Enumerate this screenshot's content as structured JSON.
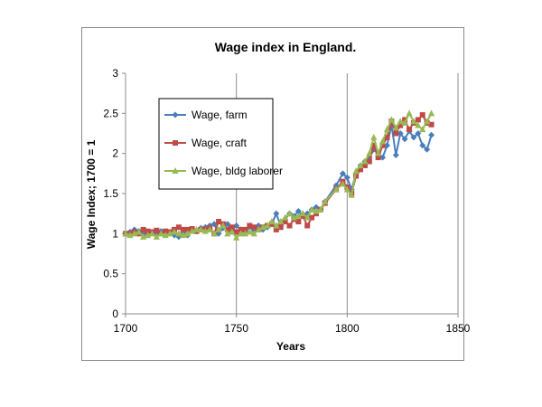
{
  "chart_data": {
    "type": "line",
    "title": "Wage index in England.",
    "xlabel": "Years",
    "ylabel": "Wage Index; 1700 = 1",
    "xlim": [
      1700,
      1850
    ],
    "ylim": [
      0,
      3
    ],
    "xticks": [
      1700,
      1750,
      1800,
      1850
    ],
    "yticks": [
      0,
      0.5,
      1,
      1.5,
      2,
      2.5,
      3
    ],
    "xtick_labels": [
      "1700",
      "1750",
      "1800",
      "1850"
    ],
    "ytick_labels": [
      "0",
      "0.5",
      "1",
      "1.5",
      "2",
      "2.5",
      "3"
    ],
    "grid": "vertical",
    "legend_position": "upper-left",
    "series": [
      {
        "name": "Wage, farm",
        "color": "#4a7ebb",
        "marker": "diamond",
        "x": [
          1700,
          1702,
          1704,
          1706,
          1708,
          1710,
          1712,
          1714,
          1716,
          1718,
          1720,
          1722,
          1724,
          1726,
          1728,
          1730,
          1732,
          1734,
          1736,
          1738,
          1740,
          1742,
          1744,
          1746,
          1748,
          1750,
          1752,
          1754,
          1756,
          1758,
          1760,
          1762,
          1764,
          1766,
          1768,
          1770,
          1772,
          1774,
          1776,
          1778,
          1780,
          1782,
          1784,
          1786,
          1788,
          1790,
          1795,
          1798,
          1800,
          1802,
          1804,
          1806,
          1808,
          1810,
          1812,
          1814,
          1816,
          1818,
          1820,
          1822,
          1824,
          1826,
          1828,
          1830,
          1832,
          1834,
          1836,
          1838
        ],
        "y": [
          1.0,
          1.02,
          1.05,
          1.03,
          1.0,
          0.98,
          1.02,
          1.0,
          1.03,
          1.0,
          1.02,
          0.98,
          0.96,
          1.02,
          0.98,
          1.05,
          1.03,
          1.07,
          1.08,
          1.1,
          1.12,
          1.0,
          1.07,
          1.12,
          1.05,
          1.1,
          1.05,
          1.03,
          1.08,
          1.04,
          1.1,
          1.05,
          1.08,
          1.12,
          1.25,
          1.1,
          1.18,
          1.25,
          1.22,
          1.28,
          1.22,
          1.25,
          1.3,
          1.33,
          1.3,
          1.4,
          1.6,
          1.75,
          1.7,
          1.55,
          1.75,
          1.85,
          1.9,
          1.95,
          2.05,
          2.0,
          1.95,
          2.1,
          2.35,
          1.98,
          2.25,
          2.18,
          2.28,
          2.2,
          2.25,
          2.1,
          2.05,
          2.23
        ]
      },
      {
        "name": "Wage, craft",
        "color": "#be4b48",
        "marker": "square",
        "x": [
          1700,
          1702,
          1704,
          1706,
          1708,
          1710,
          1712,
          1714,
          1716,
          1718,
          1720,
          1722,
          1724,
          1726,
          1728,
          1730,
          1732,
          1734,
          1736,
          1738,
          1740,
          1742,
          1744,
          1746,
          1748,
          1750,
          1752,
          1754,
          1756,
          1758,
          1760,
          1762,
          1764,
          1766,
          1768,
          1770,
          1772,
          1774,
          1776,
          1778,
          1780,
          1782,
          1784,
          1786,
          1788,
          1790,
          1795,
          1798,
          1800,
          1802,
          1804,
          1806,
          1808,
          1810,
          1812,
          1814,
          1816,
          1818,
          1820,
          1822,
          1824,
          1826,
          1828,
          1830,
          1832,
          1834,
          1836,
          1838
        ],
        "y": [
          1.0,
          1.0,
          1.02,
          1.0,
          1.05,
          1.03,
          1.02,
          1.04,
          1.0,
          1.03,
          1.02,
          1.05,
          1.08,
          1.05,
          1.05,
          1.06,
          1.03,
          1.05,
          1.05,
          1.07,
          1.0,
          1.15,
          1.12,
          1.05,
          1.08,
          1.02,
          1.05,
          1.05,
          1.1,
          1.08,
          1.05,
          1.08,
          1.1,
          1.12,
          1.05,
          1.08,
          1.15,
          1.1,
          1.18,
          1.15,
          1.22,
          1.1,
          1.2,
          1.25,
          1.3,
          1.38,
          1.55,
          1.65,
          1.58,
          1.5,
          1.72,
          1.8,
          1.85,
          1.9,
          2.1,
          1.95,
          2.1,
          2.2,
          2.4,
          2.25,
          2.35,
          2.42,
          2.3,
          2.38,
          2.42,
          2.48,
          2.38,
          2.36
        ]
      },
      {
        "name": "Wage, bldg laborer",
        "color": "#98b954",
        "marker": "triangle",
        "x": [
          1700,
          1702,
          1704,
          1706,
          1708,
          1710,
          1712,
          1714,
          1716,
          1718,
          1720,
          1722,
          1724,
          1726,
          1728,
          1730,
          1732,
          1734,
          1736,
          1738,
          1740,
          1742,
          1744,
          1746,
          1748,
          1750,
          1752,
          1754,
          1756,
          1758,
          1760,
          1762,
          1764,
          1766,
          1768,
          1770,
          1772,
          1774,
          1776,
          1778,
          1780,
          1782,
          1784,
          1786,
          1788,
          1790,
          1795,
          1798,
          1800,
          1802,
          1804,
          1806,
          1808,
          1810,
          1812,
          1814,
          1816,
          1818,
          1820,
          1822,
          1824,
          1826,
          1828,
          1830,
          1832,
          1834,
          1836,
          1838
        ],
        "y": [
          1.0,
          0.98,
          1.0,
          1.02,
          0.96,
          0.98,
          1.0,
          0.96,
          1.0,
          0.98,
          1.0,
          1.02,
          1.0,
          0.98,
          1.0,
          1.03,
          1.05,
          1.05,
          1.03,
          1.05,
          1.0,
          1.05,
          1.1,
          1.0,
          1.02,
          0.95,
          1.0,
          1.0,
          1.02,
          1.0,
          1.05,
          1.08,
          1.1,
          1.15,
          1.1,
          1.15,
          1.2,
          1.25,
          1.2,
          1.22,
          1.25,
          1.2,
          1.3,
          1.28,
          1.3,
          1.4,
          1.55,
          1.62,
          1.55,
          1.48,
          1.78,
          1.85,
          1.9,
          2.0,
          2.2,
          2.0,
          2.15,
          2.3,
          2.42,
          2.32,
          2.4,
          2.38,
          2.5,
          2.4,
          2.35,
          2.3,
          2.4,
          2.5
        ]
      }
    ]
  }
}
